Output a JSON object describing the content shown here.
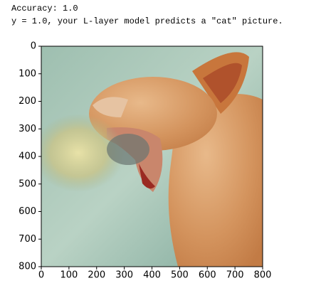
{
  "output": {
    "lines": [
      "Accuracy: 1.0",
      "y = 1.0, your L-layer model predicts a \"cat\" picture."
    ]
  },
  "chart_data": {
    "type": "image",
    "xlim": [
      0,
      800
    ],
    "ylim": [
      800,
      0
    ],
    "xticks": [
      0,
      100,
      200,
      300,
      400,
      500,
      600,
      700,
      800
    ],
    "yticks": [
      0,
      100,
      200,
      300,
      400,
      500,
      600,
      700,
      800
    ]
  }
}
